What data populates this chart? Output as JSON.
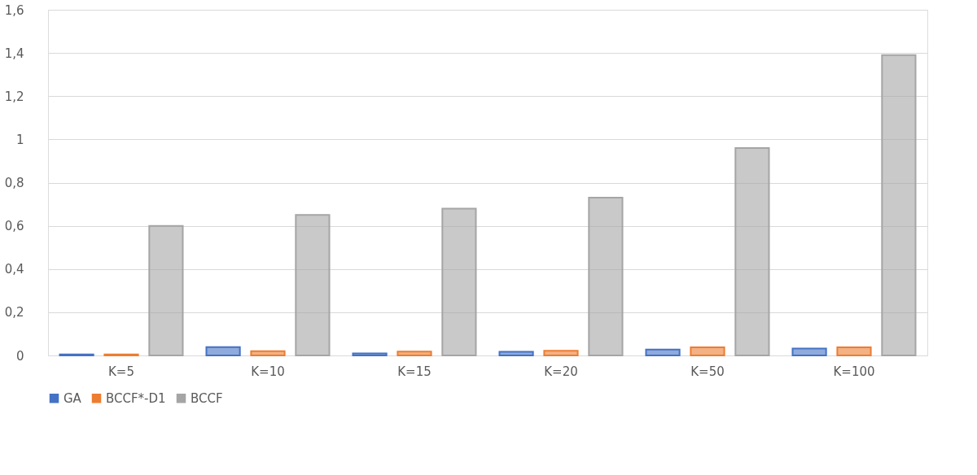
{
  "chart_data": {
    "type": "bar",
    "categories": [
      "K=5",
      "K=10",
      "K=15",
      "K=20",
      "K=50",
      "K=100"
    ],
    "series": [
      {
        "name": "GA",
        "color": "#4472c4",
        "values": [
          0.005,
          0.039,
          0.009,
          0.017,
          0.027,
          0.032
        ]
      },
      {
        "name": "BCCF*-D1",
        "color": "#ed7d31",
        "values": [
          0.005,
          0.02,
          0.018,
          0.022,
          0.038,
          0.038
        ]
      },
      {
        "name": "BCCF",
        "color": "#a5a5a5",
        "values": [
          0.6,
          0.65,
          0.68,
          0.73,
          0.96,
          1.39
        ]
      }
    ],
    "ylim": [
      0,
      1.6
    ],
    "yticks": [
      0,
      {
        "value": 0.2,
        "label": "0,2"
      },
      {
        "value": 0.4,
        "label": "0,4"
      },
      {
        "value": 0.6,
        "label": "0,6"
      },
      {
        "value": 0.8,
        "label": "0,8"
      },
      1,
      {
        "value": 1.2,
        "label": "1,2"
      },
      {
        "value": 1.4,
        "label": "1,4"
      },
      {
        "value": 1.6,
        "label": "1,6"
      }
    ],
    "grid": "y",
    "legend": "bottom"
  }
}
